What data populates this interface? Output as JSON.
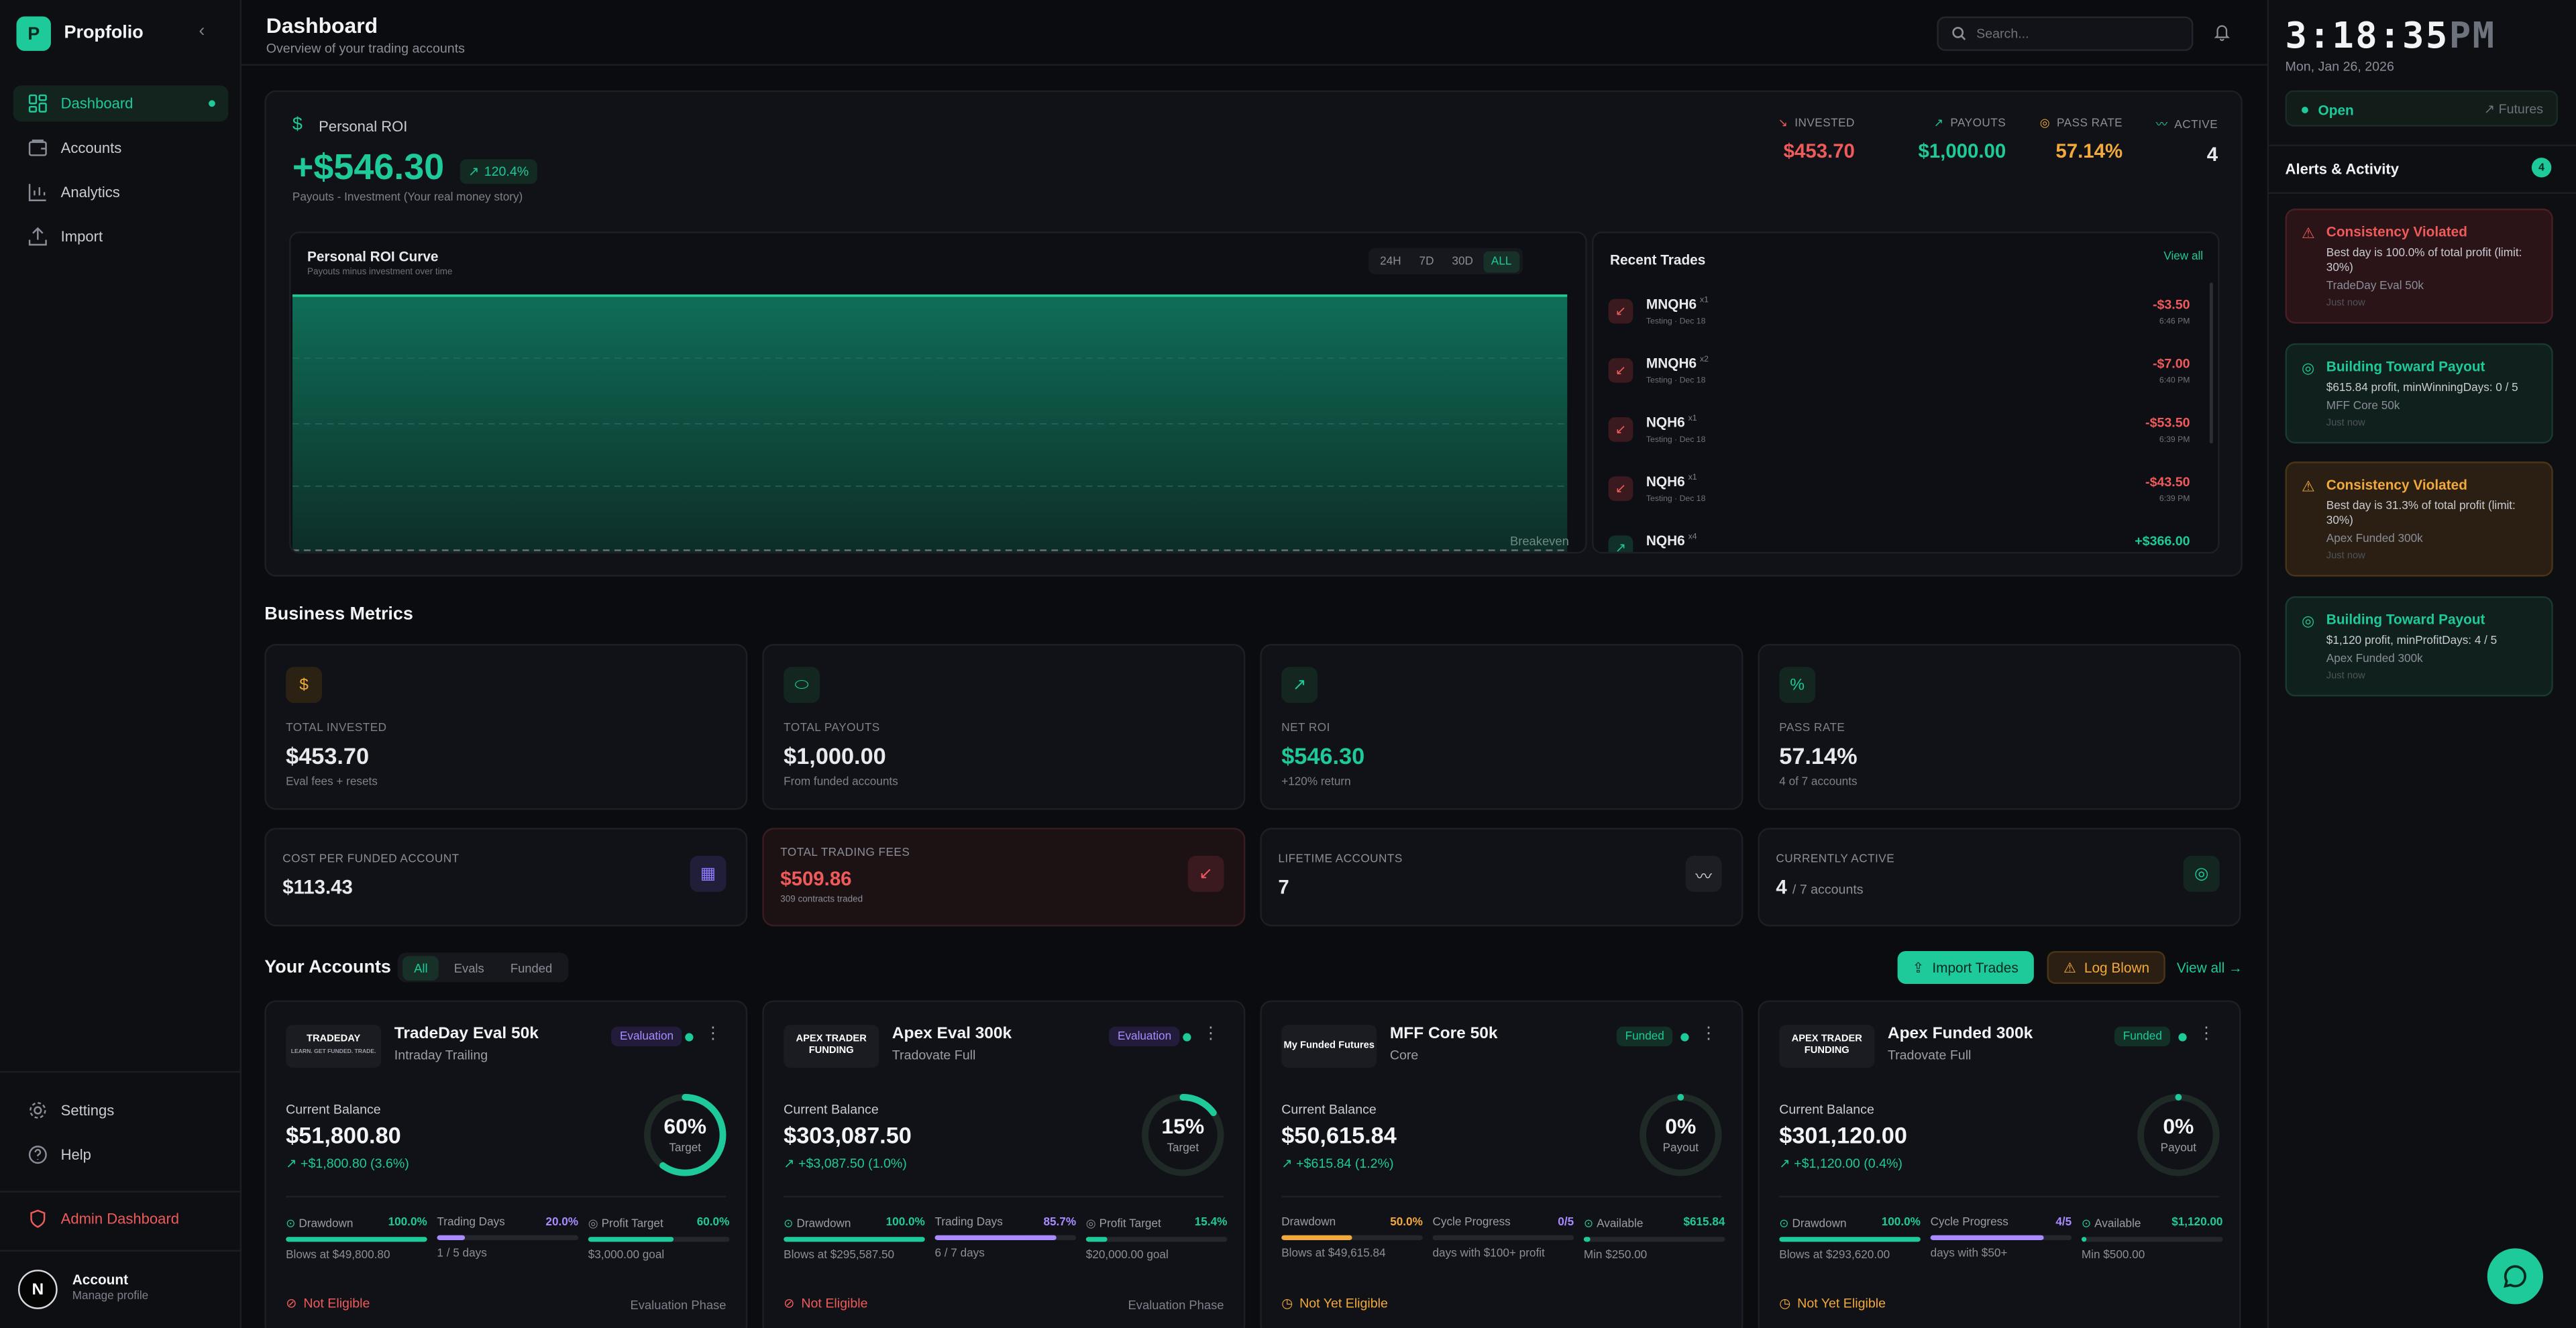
{
  "sidebar": {
    "brand": "Propfolio",
    "logo_letter": "P",
    "nav": [
      {
        "label": "Dashboard",
        "icon": "dashboard-icon",
        "active": true
      },
      {
        "label": "Accounts",
        "icon": "accounts-icon"
      },
      {
        "label": "Analytics",
        "icon": "analytics-icon"
      },
      {
        "label": "Import",
        "icon": "import-icon"
      }
    ],
    "settings": "Settings",
    "help": "Help",
    "admin": "Admin Dashboard",
    "account_name": "Account",
    "account_sub": "Manage profile",
    "avatar_letter": "N"
  },
  "header": {
    "title": "Dashboard",
    "subtitle": "Overview of your trading accounts",
    "search_placeholder": "Search..."
  },
  "roi": {
    "label": "Personal ROI",
    "value": "+$546.30",
    "pct": "120.4%",
    "description": "Payouts - Investment (Your real money story)",
    "stats": [
      {
        "label": "INVESTED",
        "value": "$453.70",
        "color": "#ef5a5a",
        "icon": "trend-down-icon"
      },
      {
        "label": "PAYOUTS",
        "value": "$1,000.00",
        "color": "#1ec99a",
        "icon": "trend-up-icon"
      },
      {
        "label": "PASS RATE",
        "value": "57.14%",
        "color": "#f2a93b",
        "icon": "target-icon"
      },
      {
        "label": "ACTIVE",
        "value": "4",
        "color": "#f2f3f5",
        "icon": "activity-icon"
      }
    ],
    "curve": {
      "title": "Personal ROI Curve",
      "subtitle": "Payouts minus investment over time",
      "ranges": [
        "24H",
        "7D",
        "30D",
        "ALL"
      ],
      "selected_range": "ALL",
      "breakeven_label": "Breakeven"
    }
  },
  "recent_trades": {
    "title": "Recent Trades",
    "view_all": "View all",
    "items": [
      {
        "symbol": "MNQH6",
        "qty": "x1",
        "meta": "Testing · Dec 18",
        "amount": "-$3.50",
        "time": "6:46 PM",
        "dir": "down"
      },
      {
        "symbol": "MNQH6",
        "qty": "x2",
        "meta": "Testing · Dec 18",
        "amount": "-$7.00",
        "time": "6:40 PM",
        "dir": "down"
      },
      {
        "symbol": "NQH6",
        "qty": "x1",
        "meta": "Testing · Dec 18",
        "amount": "-$53.50",
        "time": "6:39 PM",
        "dir": "down"
      },
      {
        "symbol": "NQH6",
        "qty": "x1",
        "meta": "Testing · Dec 18",
        "amount": "-$43.50",
        "time": "6:39 PM",
        "dir": "down"
      },
      {
        "symbol": "NQH6",
        "qty": "x4",
        "meta": "",
        "amount": "+$366.00",
        "time": "",
        "dir": "up"
      }
    ]
  },
  "business": {
    "title": "Business Metrics",
    "metrics": [
      {
        "label": "TOTAL INVESTED",
        "value": "$453.70",
        "sub": "Eval fees + resets",
        "icon": "dollar-icon"
      },
      {
        "label": "TOTAL PAYOUTS",
        "value": "$1,000.00",
        "sub": "From funded accounts",
        "icon": "piggy-bank-icon"
      },
      {
        "label": "NET ROI",
        "value": "$546.30",
        "sub": "+120% return",
        "icon": "trend-up-icon"
      },
      {
        "label": "PASS RATE",
        "value": "57.14%",
        "sub": "4 of 7 accounts",
        "icon": "percent-icon"
      }
    ],
    "secondary": [
      {
        "label": "COST PER FUNDED ACCOUNT",
        "value": "$113.43",
        "sub": "",
        "icon": "calculator-icon"
      },
      {
        "label": "TOTAL TRADING FEES",
        "value": "$509.86",
        "sub": "309 contracts traded",
        "icon": "arrow-down-left-icon"
      },
      {
        "label": "LIFETIME ACCOUNTS",
        "value": "7",
        "sub": "",
        "icon": "activity-icon"
      },
      {
        "label": "CURRENTLY ACTIVE",
        "value": "4",
        "sub": "/ 7 accounts",
        "icon": "target-icon"
      }
    ]
  },
  "accounts": {
    "title": "Your Accounts",
    "tabs": [
      "All",
      "Evals",
      "Funded"
    ],
    "selected_tab": "All",
    "import_label": "Import Trades",
    "log_blown_label": "Log Blown",
    "view_all": "View all →",
    "balance_label": "Current Balance",
    "items": [
      {
        "logo_text": "TRADEDAY",
        "logo_tag": "LEARN. GET FUNDED. TRADE.",
        "name": "TradeDay Eval 50k",
        "type": "Intraday Trailing",
        "badge": "Evaluation",
        "balance": "$51,800.80",
        "change": "+$1,800.80 (3.6%)",
        "ring_value": "60%",
        "ring_label": "Target",
        "ring_pct": 60,
        "progress": [
          {
            "label": "Drawdown",
            "value": "100.0%",
            "pct": 100,
            "color": "#1ec99a",
            "sub": "Blows at $49,800.80"
          },
          {
            "label": "Trading Days",
            "value": "20.0%",
            "pct": 20,
            "color": "#a98bff",
            "sub": "1 / 5 days"
          },
          {
            "label": "Profit Target",
            "value": "60.0%",
            "pct": 60,
            "color": "#1ec99a",
            "sub": "$3,000.00 goal"
          }
        ],
        "eligibility": "Not Eligible",
        "elig_color": "#ef5a5a",
        "phase": "Evaluation Phase"
      },
      {
        "logo_text": "APEX TRADER FUNDING",
        "logo_tag": "",
        "name": "Apex Eval 300k",
        "type": "Tradovate Full",
        "badge": "Evaluation",
        "balance": "$303,087.50",
        "change": "+$3,087.50 (1.0%)",
        "ring_value": "15%",
        "ring_label": "Target",
        "ring_pct": 15,
        "progress": [
          {
            "label": "Drawdown",
            "value": "100.0%",
            "pct": 100,
            "color": "#1ec99a",
            "sub": "Blows at $295,587.50"
          },
          {
            "label": "Trading Days",
            "value": "85.7%",
            "pct": 85.7,
            "color": "#a98bff",
            "sub": "6 / 7 days"
          },
          {
            "label": "Profit Target",
            "value": "15.4%",
            "pct": 15.4,
            "color": "#1ec99a",
            "sub": "$20,000.00 goal"
          }
        ],
        "eligibility": "Not Eligible",
        "elig_color": "#ef5a5a",
        "phase": "Evaluation Phase"
      },
      {
        "logo_text": "My Funded Futures",
        "logo_tag": "",
        "name": "MFF Core 50k",
        "type": "Core",
        "badge": "Funded",
        "balance": "$50,615.84",
        "change": "+$615.84 (1.2%)",
        "ring_value": "0%",
        "ring_label": "Payout",
        "ring_pct": 0,
        "progress": [
          {
            "label": "Drawdown",
            "value": "50.0%",
            "pct": 50,
            "color": "#f2a93b",
            "sub": "Blows at $49,615.84"
          },
          {
            "label": "Cycle Progress",
            "value": "0/5",
            "pct": 0,
            "color": "#a98bff",
            "sub": "days with $100+ profit"
          },
          {
            "label": "Available",
            "value": "$615.84",
            "pct": 5,
            "color": "#1ec99a",
            "sub": "Min $250.00"
          }
        ],
        "eligibility": "Not Yet Eligible",
        "elig_color": "#f2a93b",
        "phase": ""
      },
      {
        "logo_text": "APEX TRADER FUNDING",
        "logo_tag": "",
        "name": "Apex Funded 300k",
        "type": "Tradovate Full",
        "badge": "Funded",
        "balance": "$301,120.00",
        "change": "+$1,120.00 (0.4%)",
        "ring_value": "0%",
        "ring_label": "Payout",
        "ring_pct": 0,
        "progress": [
          {
            "label": "Drawdown",
            "value": "100.0%",
            "pct": 100,
            "color": "#1ec99a",
            "sub": "Blows at $293,620.00"
          },
          {
            "label": "Cycle Progress",
            "value": "4/5",
            "pct": 80,
            "color": "#a98bff",
            "sub": "days with $50+"
          },
          {
            "label": "Available",
            "value": "$1,120.00",
            "pct": 3,
            "color": "#1ec99a",
            "sub": "Min $500.00"
          }
        ],
        "eligibility": "Not Yet Eligible",
        "elig_color": "#f2a93b",
        "phase": ""
      }
    ]
  },
  "right_panel": {
    "clock_time": "3:18:35",
    "clock_ampm": "PM",
    "date": "Mon, Jan 26, 2026",
    "market_status": "Open",
    "market_type": "Futures",
    "alerts_title": "Alerts & Activity",
    "alerts_count": "4",
    "alerts": [
      {
        "title": "Consistency Violated",
        "desc": "Best day is 100.0% of total profit (limit: 30%)",
        "account": "TradeDay Eval 50k",
        "when": "Just now",
        "kind": "red"
      },
      {
        "title": "Building Toward Payout",
        "desc": "$615.84 profit, minWinningDays: 0 / 5",
        "account": "MFF Core 50k",
        "when": "Just now",
        "kind": "green"
      },
      {
        "title": "Consistency Violated",
        "desc": "Best day is 31.3% of total profit (limit: 30%)",
        "account": "Apex Funded 300k",
        "when": "Just now",
        "kind": "orange"
      },
      {
        "title": "Building Toward Payout",
        "desc": "$1,120 profit, minProfitDays: 4 / 5",
        "account": "Apex Funded 300k",
        "when": "Just now",
        "kind": "green"
      }
    ]
  },
  "colors": {
    "accent": "#1ec99a",
    "danger": "#ef5a5a",
    "warning": "#f2a93b",
    "purple": "#a98bff"
  }
}
